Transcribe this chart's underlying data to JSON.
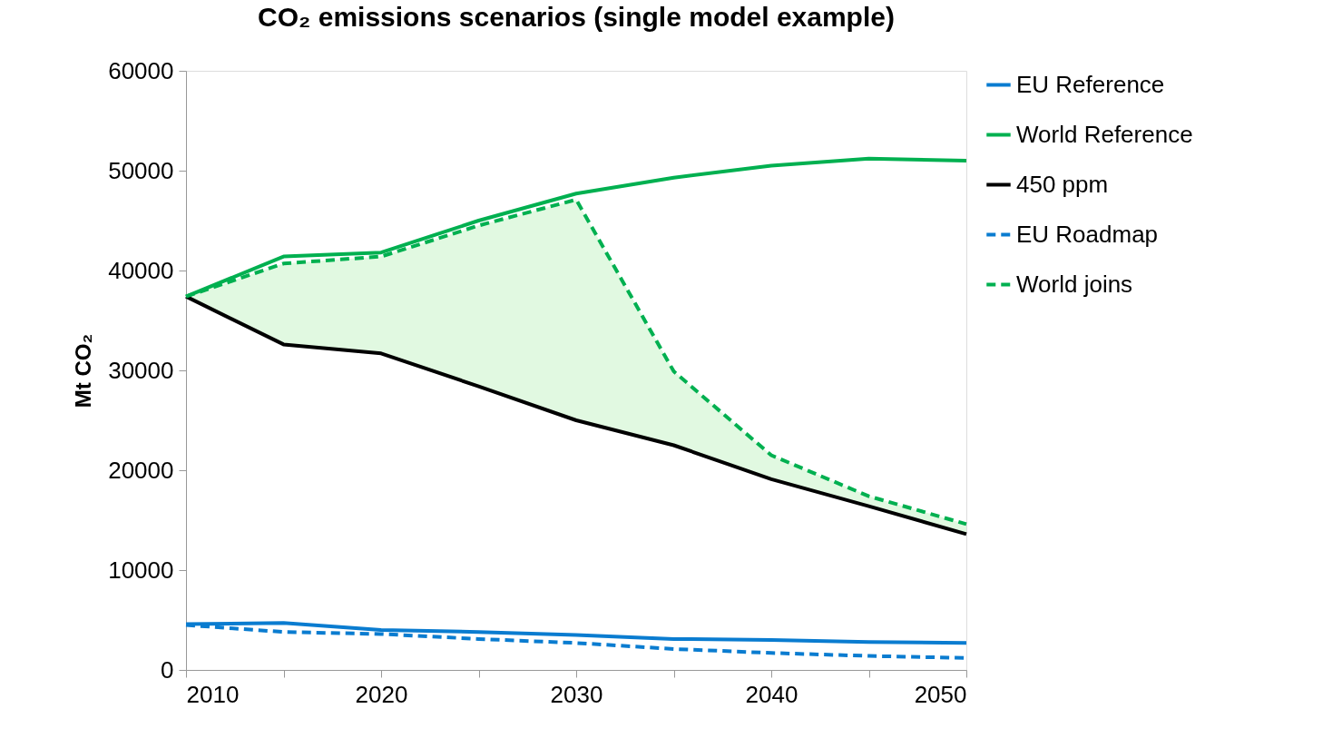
{
  "chart_data": {
    "type": "line",
    "title": "CO₂ emissions scenarios (single model example)",
    "ylabel": "Mt CO₂",
    "x": [
      2010,
      2015,
      2020,
      2025,
      2030,
      2035,
      2040,
      2045,
      2050
    ],
    "xlim": [
      2010,
      2050
    ],
    "xticks": [
      2010,
      {
        "value": 2015,
        "label": null
      },
      2020,
      {
        "value": 2025,
        "label": null
      },
      2030,
      {
        "value": 2035,
        "label": null
      },
      2040,
      {
        "value": 2045,
        "label": null
      },
      2050
    ],
    "ylim": [
      0,
      60000
    ],
    "yticks": [
      0,
      10000,
      20000,
      30000,
      40000,
      50000,
      60000
    ],
    "grid": false,
    "legend": "right",
    "marker": "none",
    "series": [
      {
        "name": "EU Reference",
        "color": "#0a7cd0",
        "line_style": "solid",
        "values": [
          4600,
          4700,
          4000,
          3800,
          3500,
          3100,
          3000,
          2800,
          2700
        ]
      },
      {
        "name": "World Reference",
        "color": "#00b050",
        "line_style": "solid",
        "values": [
          37400,
          41400,
          41800,
          45000,
          47700,
          49300,
          50500,
          51200,
          51000
        ]
      },
      {
        "name": "450 ppm",
        "color": "#000000",
        "line_style": "solid",
        "values": [
          37400,
          32600,
          31700,
          28400,
          25000,
          22500,
          19100,
          16400,
          13600
        ]
      },
      {
        "name": "EU Roadmap",
        "color": "#0a7cd0",
        "line_style": "dashed",
        "values": [
          4500,
          3800,
          3600,
          3100,
          2700,
          2100,
          1700,
          1400,
          1200
        ]
      },
      {
        "name": "World joins",
        "color": "#00b050",
        "line_style": "dashed",
        "values": [
          37400,
          40700,
          41400,
          44500,
          47100,
          29900,
          21500,
          17400,
          14600
        ],
        "lower": [
          37400,
          32600,
          31700,
          28400,
          25000,
          22500,
          19100,
          16400,
          13600
        ],
        "upper": [
          37400,
          40700,
          41400,
          44500,
          47100,
          29900,
          21500,
          17400,
          14600
        ]
      }
    ]
  }
}
